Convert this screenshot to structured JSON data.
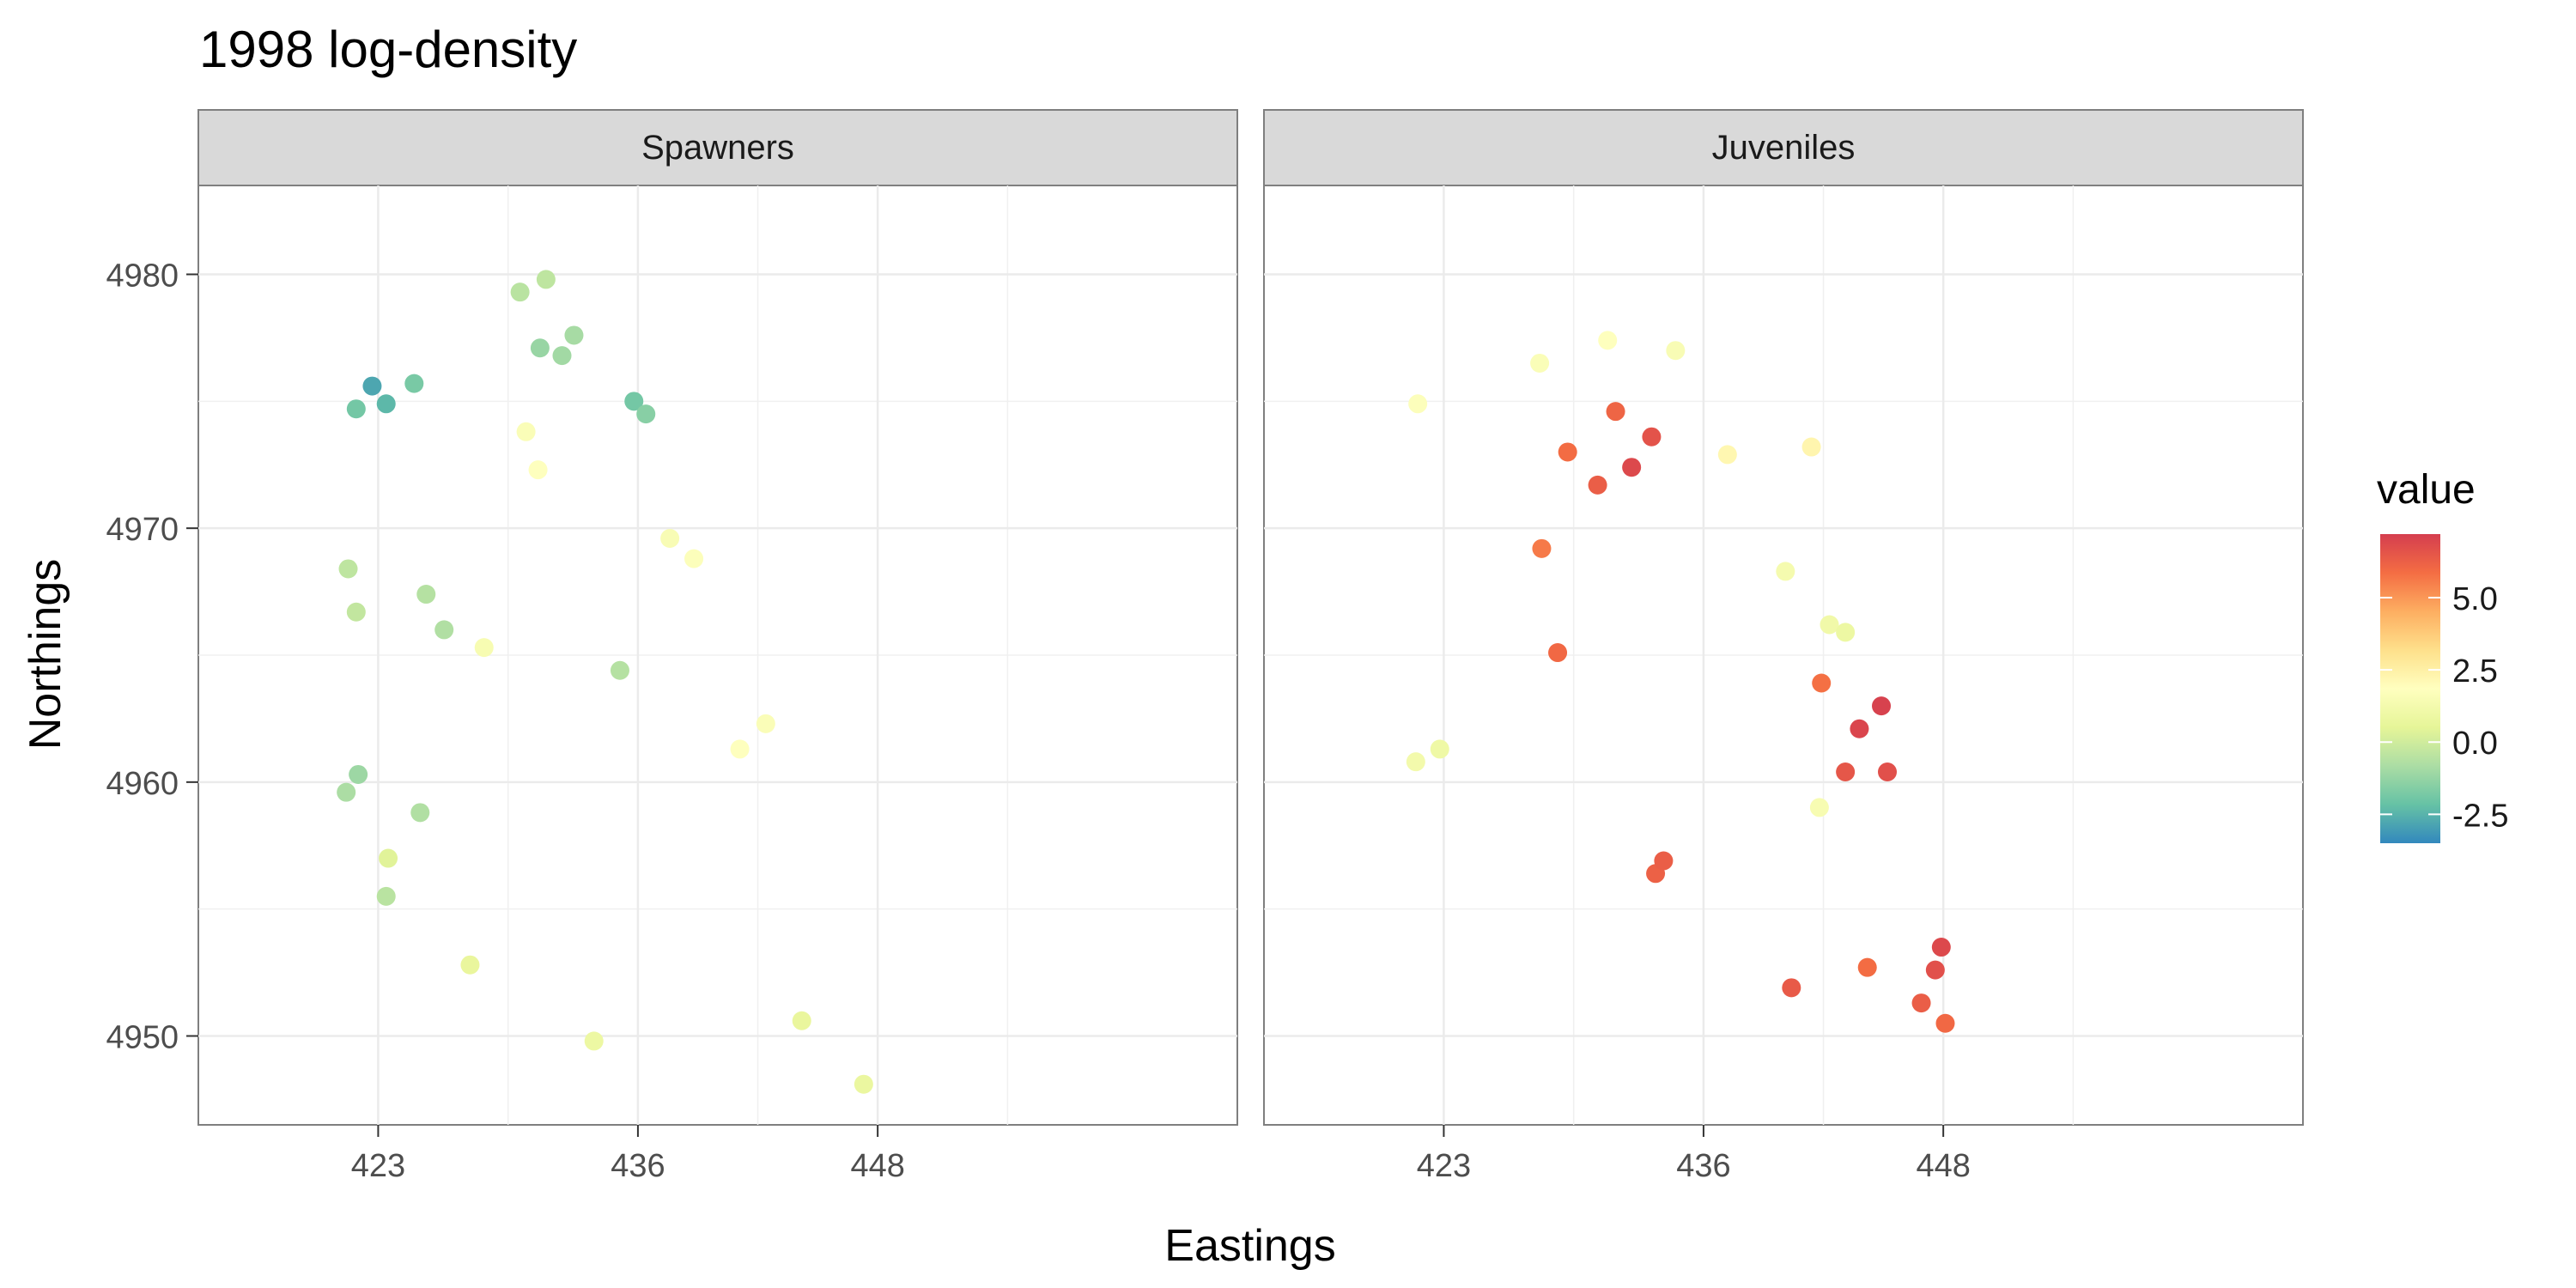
{
  "chart_data": {
    "type": "scatter",
    "title": "1998 log-density",
    "xlabel": "Eastings",
    "ylabel": "Northings",
    "xlim": [
      414,
      466
    ],
    "ylim": [
      4946.5,
      4983.5
    ],
    "x_ticks": [
      423,
      436,
      448
    ],
    "y_ticks": [
      4950,
      4960,
      4970,
      4980
    ],
    "grid": true,
    "legend": {
      "title": "value",
      "placement": "right",
      "range": [
        -3.5,
        7.2
      ],
      "ticks": [
        -2.5,
        0.0,
        2.5,
        5.0
      ],
      "tick_labels": [
        "-2.5",
        "0.0",
        "2.5",
        "5.0"
      ],
      "colors": [
        "#3288BD",
        "#66C2A5",
        "#ABDDA4",
        "#E6F598",
        "#FFFFBF",
        "#FEE08B",
        "#FDAE61",
        "#F46D43",
        "#D53E4F"
      ]
    },
    "facets": [
      {
        "name": "Spawners",
        "points": [
          [
            422.7,
            4975.6,
            -2.8
          ],
          [
            423.4,
            4974.9,
            -2.4
          ],
          [
            421.9,
            4974.7,
            -1.9
          ],
          [
            424.8,
            4975.7,
            -1.8
          ],
          [
            435.8,
            4975.0,
            -1.9
          ],
          [
            436.4,
            4974.5,
            -1.5
          ],
          [
            431.1,
            4977.1,
            -1.2
          ],
          [
            432.2,
            4976.8,
            -1.0
          ],
          [
            432.8,
            4977.6,
            -0.9
          ],
          [
            422.0,
            4960.3,
            -1.1
          ],
          [
            421.4,
            4959.6,
            -0.8
          ],
          [
            426.3,
            4966.0,
            -0.7
          ],
          [
            425.4,
            4967.4,
            -0.6
          ],
          [
            421.5,
            4968.4,
            -0.4
          ],
          [
            421.9,
            4966.7,
            -0.3
          ],
          [
            430.1,
            4979.3,
            -0.5
          ],
          [
            431.4,
            4979.8,
            -0.4
          ],
          [
            435.1,
            4964.4,
            -0.6
          ],
          [
            423.4,
            4955.5,
            -0.5
          ],
          [
            425.1,
            4958.8,
            -0.7
          ],
          [
            430.4,
            4973.8,
            1.6
          ],
          [
            431.0,
            4972.3,
            1.8
          ],
          [
            438.8,
            4968.8,
            1.7
          ],
          [
            437.6,
            4969.6,
            1.5
          ],
          [
            441.1,
            4961.3,
            1.8
          ],
          [
            442.4,
            4962.3,
            1.6
          ],
          [
            428.3,
            4965.3,
            1.4
          ],
          [
            433.8,
            4949.8,
            0.9
          ],
          [
            447.3,
            4948.1,
            0.8
          ],
          [
            444.2,
            4950.6,
            0.7
          ],
          [
            423.5,
            4957.0,
            0.4
          ],
          [
            427.6,
            4952.8,
            0.7
          ]
        ]
      },
      {
        "name": "Juveniles",
        "points": [
          [
            430.7,
            4971.7,
            6.3
          ],
          [
            432.4,
            4972.4,
            6.9
          ],
          [
            433.4,
            4973.6,
            6.6
          ],
          [
            431.6,
            4974.6,
            6.1
          ],
          [
            429.2,
            4973.0,
            5.9
          ],
          [
            427.9,
            4969.2,
            5.6
          ],
          [
            428.7,
            4965.1,
            6.0
          ],
          [
            443.8,
            4962.1,
            7.0
          ],
          [
            444.9,
            4963.0,
            7.1
          ],
          [
            445.2,
            4960.4,
            6.7
          ],
          [
            443.1,
            4960.4,
            6.5
          ],
          [
            441.9,
            4963.9,
            5.8
          ],
          [
            433.6,
            4956.4,
            6.2
          ],
          [
            434.0,
            4956.9,
            6.3
          ],
          [
            440.4,
            4951.9,
            6.4
          ],
          [
            444.2,
            4952.7,
            5.9
          ],
          [
            447.9,
            4953.5,
            6.9
          ],
          [
            447.6,
            4952.6,
            6.7
          ],
          [
            446.9,
            4951.3,
            6.3
          ],
          [
            448.1,
            4950.5,
            6.0
          ],
          [
            421.6,
            4960.8,
            1.2
          ],
          [
            422.8,
            4961.3,
            1.0
          ],
          [
            427.8,
            4976.5,
            1.6
          ],
          [
            431.2,
            4977.4,
            1.8
          ],
          [
            434.6,
            4977.0,
            1.5
          ],
          [
            437.2,
            4972.9,
            2.2
          ],
          [
            441.4,
            4973.2,
            2.3
          ],
          [
            442.3,
            4966.2,
            1.1
          ],
          [
            443.1,
            4965.9,
            0.9
          ],
          [
            440.1,
            4968.3,
            1.3
          ],
          [
            421.7,
            4974.9,
            1.7
          ],
          [
            441.8,
            4959.0,
            1.4
          ]
        ]
      }
    ]
  }
}
